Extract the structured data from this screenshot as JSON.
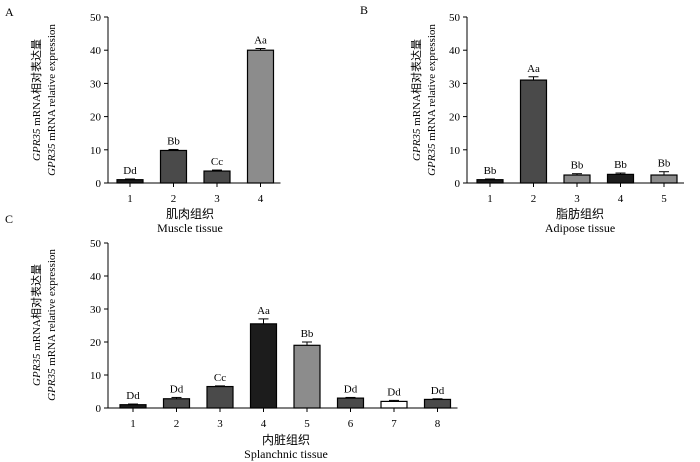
{
  "ylabel_en_italic": "GPR35",
  "ylabel_en_rest": " mRNA relative expression",
  "ylabel_cn_italic": "GPR35",
  "ylabel_cn_rest": " mRNA相对表达量",
  "colors": {
    "dark": "#1c1c1c",
    "mid": "#4a4a4a",
    "gray": "#8c8c8c",
    "light": "#ffffff",
    "axis": "#000000"
  },
  "chart_data": [
    {
      "type": "bar",
      "panel": "A",
      "title": "",
      "xlabel_cn": "肌肉组织",
      "xlabel_en": "Muscle tissue",
      "ylabel": "GPR35 mRNA相对表达量 / GPR35 mRNA relative expression",
      "ylim": [
        0,
        50
      ],
      "yticks": [
        0,
        10,
        20,
        30,
        40,
        50
      ],
      "categories": [
        "1",
        "2",
        "3",
        "4"
      ],
      "values": [
        1,
        9.8,
        3.6,
        40
      ],
      "errors": [
        0.2,
        0.3,
        0.3,
        0.5
      ],
      "labels": [
        "Dd",
        "Bb",
        "Cc",
        "Aa"
      ],
      "colors": [
        "#1c1c1c",
        "#4a4a4a",
        "#4a4a4a",
        "#8c8c8c"
      ]
    },
    {
      "type": "bar",
      "panel": "B",
      "title": "",
      "xlabel_cn": "脂肪组织",
      "xlabel_en": "Adipose tissue",
      "ylabel": "GPR35 mRNA相对表达量 / GPR35 mRNA relative expression",
      "ylim": [
        0,
        50
      ],
      "yticks": [
        0,
        10,
        20,
        30,
        40,
        50
      ],
      "categories": [
        "1",
        "2",
        "3",
        "4",
        "5"
      ],
      "values": [
        1,
        31,
        2.4,
        2.6,
        2.4
      ],
      "errors": [
        0.2,
        1,
        0.4,
        0.4,
        1
      ],
      "labels": [
        "Bb",
        "Aa",
        "Bb",
        "Bb",
        "Bb"
      ],
      "colors": [
        "#1c1c1c",
        "#4a4a4a",
        "#8c8c8c",
        "#1c1c1c",
        "#8c8c8c"
      ]
    },
    {
      "type": "bar",
      "panel": "C",
      "title": "",
      "xlabel_cn": "内脏组织",
      "xlabel_en": "Splanchnic tissue",
      "ylabel": "GPR35 mRNA相对表达量 / GPR35 mRNA relative expression",
      "ylim": [
        0,
        50
      ],
      "yticks": [
        0,
        10,
        20,
        30,
        40,
        50
      ],
      "categories": [
        "1",
        "2",
        "3",
        "4",
        "5",
        "6",
        "7",
        "8"
      ],
      "values": [
        1,
        2.8,
        6.5,
        25.5,
        19,
        3,
        2,
        2.6
      ],
      "errors": [
        0.2,
        0.4,
        0.2,
        1.5,
        1,
        0.2,
        0.3,
        0.2
      ],
      "labels": [
        "Dd",
        "Dd",
        "Cc",
        "Aa",
        "Bb",
        "Dd",
        "Dd",
        "Dd"
      ],
      "colors": [
        "#1c1c1c",
        "#4a4a4a",
        "#4a4a4a",
        "#1c1c1c",
        "#8c8c8c",
        "#4a4a4a",
        "#ffffff",
        "#4a4a4a"
      ]
    }
  ]
}
